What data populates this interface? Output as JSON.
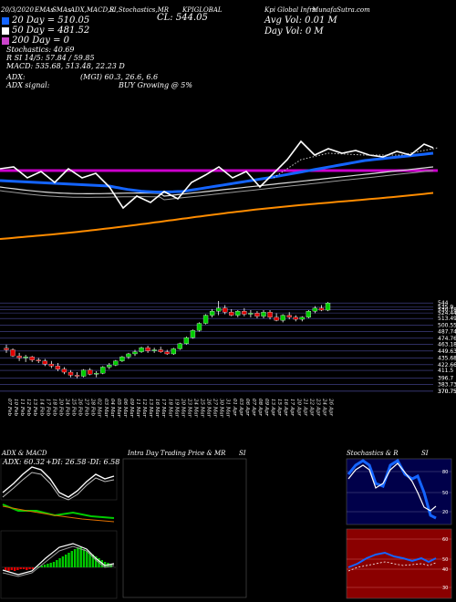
{
  "header": {
    "line1": [
      "20/3/2020",
      "EMAs",
      "SMAs",
      "ADX,MACD,R",
      "SI,Stochastics,MR",
      "KPIGLOBAL",
      "Kpi Global Infra",
      "MunafaSutra.com"
    ],
    "cl": "CL: 544.05",
    "ema20": "20 Day = 510.05",
    "ema50": "50 Day = 481.52",
    "ema200": "200 Day = 0",
    "avg_vol": "Avg Vol: 0.01 M",
    "day_vol": "Day Vol: 0 M",
    "stochastics": "Stochastics: 40.69",
    "rsi": "R SI 14/5: 57.84 / 59.85",
    "macd": "MACD: 535.68, 513.48, 22.23 D",
    "adx_line": "ADX:",
    "adx_values": "(MGI) 60.3, 26.6, 6.6",
    "adx_signal_label": "ADX signal:",
    "adx_signal": "BUY Growing @ 5%"
  },
  "colors": {
    "up": "#00cc00",
    "down": "#e00000",
    "ema20": "#1464ff",
    "sma": "#ffffff",
    "ema200": "#ff8c00",
    "magenta": "#cc00cc"
  },
  "chart_data": {
    "type": "candlestick",
    "price_levels": [
      "544",
      "535.9",
      "530.78",
      "524.44",
      "513.49",
      "500.55",
      "487.74",
      "474.76",
      "463.18",
      "449.63",
      "435.68",
      "422.66",
      "411.5",
      "396.7",
      "383.73",
      "370.75",
      "370.75"
    ],
    "dates": [
      "07 Feb",
      "10 Feb",
      "11 Feb",
      "12 Feb",
      "13 Feb",
      "14 Feb",
      "17 Feb",
      "18 Feb",
      "20 Feb",
      "24 Feb",
      "25 Feb",
      "26 Feb",
      "27 Feb",
      "28 Feb",
      "02 Mar",
      "03 Mar",
      "04 Mar",
      "05 Mar",
      "06 Mar",
      "09 Mar",
      "11 Mar",
      "12 Mar",
      "13 Mar",
      "16 Mar",
      "17 Mar",
      "18 Mar",
      "19 Mar",
      "20 Mar",
      "23 Mar",
      "24 Mar",
      "25 Mar",
      "26 Mar",
      "27 Mar",
      "30 Mar",
      "31 Mar",
      "01 Apr",
      "03 Apr",
      "06 Apr",
      "07 Apr",
      "08 Apr",
      "09 Apr",
      "13 Apr",
      "15 Apr",
      "16 Apr",
      "17 Apr",
      "20 Apr",
      "21 Apr",
      "22 Apr",
      "23 Apr",
      "24 Apr",
      "26 Apr"
    ],
    "candles": [
      [
        455,
        462,
        446,
        452
      ],
      [
        452,
        455,
        438,
        440
      ],
      [
        440,
        446,
        430,
        436
      ],
      [
        436,
        442,
        428,
        438
      ],
      [
        438,
        440,
        428,
        432
      ],
      [
        432,
        436,
        426,
        430
      ],
      [
        430,
        434,
        420,
        424
      ],
      [
        424,
        430,
        416,
        420
      ],
      [
        420,
        426,
        410,
        414
      ],
      [
        414,
        418,
        404,
        408
      ],
      [
        408,
        412,
        398,
        402
      ],
      [
        402,
        408,
        396,
        400
      ],
      [
        400,
        414,
        398,
        412
      ],
      [
        412,
        416,
        402,
        404
      ],
      [
        404,
        410,
        398,
        406
      ],
      [
        406,
        420,
        404,
        418
      ],
      [
        418,
        426,
        414,
        422
      ],
      [
        422,
        432,
        420,
        430
      ],
      [
        430,
        440,
        428,
        438
      ],
      [
        438,
        446,
        434,
        444
      ],
      [
        444,
        452,
        440,
        448
      ],
      [
        448,
        458,
        446,
        456
      ],
      [
        456,
        460,
        446,
        450
      ],
      [
        450,
        456,
        446,
        452
      ],
      [
        452,
        458,
        446,
        448
      ],
      [
        448,
        452,
        442,
        444
      ],
      [
        444,
        456,
        442,
        454
      ],
      [
        454,
        466,
        452,
        464
      ],
      [
        464,
        478,
        462,
        476
      ],
      [
        476,
        492,
        474,
        490
      ],
      [
        490,
        506,
        488,
        504
      ],
      [
        504,
        522,
        502,
        520
      ],
      [
        520,
        532,
        516,
        528
      ],
      [
        528,
        548,
        520,
        534
      ],
      [
        534,
        540,
        522,
        526
      ],
      [
        526,
        532,
        518,
        520
      ],
      [
        520,
        530,
        516,
        528
      ],
      [
        528,
        534,
        518,
        522
      ],
      [
        522,
        530,
        516,
        524
      ],
      [
        524,
        528,
        514,
        518
      ],
      [
        518,
        530,
        514,
        526
      ],
      [
        526,
        530,
        512,
        516
      ],
      [
        516,
        524,
        508,
        510
      ],
      [
        510,
        522,
        506,
        520
      ],
      [
        520,
        526,
        512,
        516
      ],
      [
        516,
        520,
        508,
        512
      ],
      [
        512,
        518,
        508,
        516
      ],
      [
        516,
        530,
        514,
        528
      ],
      [
        528,
        538,
        524,
        534
      ],
      [
        534,
        540,
        528,
        530
      ],
      [
        530,
        546,
        528,
        544
      ]
    ],
    "indicator_panels": [
      {
        "title": "ADX & MACD",
        "adx": "ADX: 60.32",
        "plus_di": "+DI: 26.58",
        "minus_di": "-DI: 6.58"
      },
      {
        "title": "Intra Day Trading Price & MR",
        "suffix": "SI"
      },
      {
        "title": "Stochastics & R",
        "suffix": "SI",
        "levels": [
          "80",
          "20",
          "50"
        ],
        "rsi_levels": [
          "60",
          "50",
          "40",
          "30"
        ]
      }
    ]
  }
}
